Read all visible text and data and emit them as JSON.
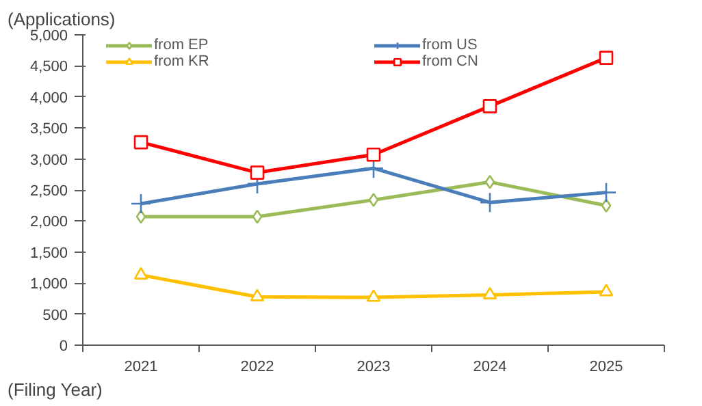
{
  "chart_data": {
    "type": "line",
    "ylabel": "(Applications)",
    "xlabel": "(Filing Year)",
    "categories": [
      "2021",
      "2022",
      "2023",
      "2024",
      "2025"
    ],
    "ylim": [
      0,
      5000
    ],
    "yticks": [
      {
        "value": 0,
        "label": "0"
      },
      {
        "value": 500,
        "label": "500"
      },
      {
        "value": 1000,
        "label": "1,000"
      },
      {
        "value": 1500,
        "label": "1,500"
      },
      {
        "value": 2000,
        "label": "2,000"
      },
      {
        "value": 2500,
        "label": "2,500"
      },
      {
        "value": 3000,
        "label": "3,000"
      },
      {
        "value": 3500,
        "label": "3,500"
      },
      {
        "value": 4000,
        "label": "4,000"
      },
      {
        "value": 4500,
        "label": "4,500"
      },
      {
        "value": 5000,
        "label": "5,000"
      }
    ],
    "grid": false,
    "legend": "top",
    "line_style": "solid",
    "series": [
      {
        "name": "from EP",
        "color": "#9bbb59",
        "marker": "diamond",
        "values": [
          2070,
          2070,
          2340,
          2630,
          2250
        ]
      },
      {
        "name": "from US",
        "color": "#4a7ebb",
        "marker": "cross",
        "values": [
          2280,
          2600,
          2850,
          2300,
          2460
        ]
      },
      {
        "name": "from KR",
        "color": "#ffc000",
        "marker": "triangle",
        "values": [
          1130,
          780,
          770,
          810,
          860
        ]
      },
      {
        "name": "from CN",
        "color": "#ff0000",
        "marker": "square",
        "values": [
          3270,
          2780,
          3070,
          3850,
          4630
        ]
      }
    ]
  }
}
